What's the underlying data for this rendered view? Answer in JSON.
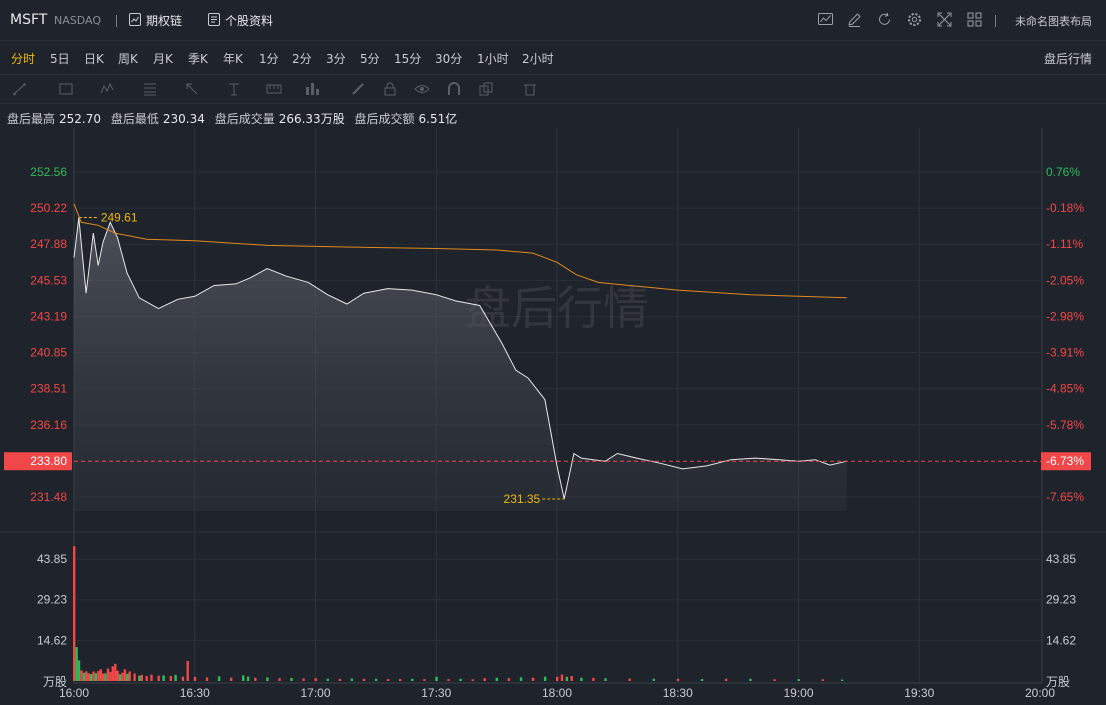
{
  "header": {
    "symbol": "MSFT",
    "exchange": "NASDAQ",
    "options_chain": "期权链",
    "stock_profile": "个股资料",
    "layout_name": "未命名图表布局"
  },
  "toolbar_icons": [
    "indicator-icon",
    "edit-icon",
    "refresh-icon",
    "settings-icon",
    "fullscreen-icon",
    "grid-layout-icon"
  ],
  "periods": [
    "分时",
    "5日",
    "日K",
    "周K",
    "月K",
    "季K",
    "年K",
    "1分",
    "2分",
    "3分",
    "5分",
    "15分",
    "30分",
    "1小时",
    "2小时"
  ],
  "active_period": "分时",
  "after_hours_select": "盘后行情",
  "stats": {
    "high_label": "盘后最高",
    "high": "252.70",
    "low_label": "盘后最低",
    "low": "230.34",
    "volume_label": "盘后成交量",
    "volume": "266.33万股",
    "amount_label": "盘后成交额",
    "amount": "6.51亿"
  },
  "watermark": "盘后行情",
  "colors": {
    "up": "#2ebd59",
    "down": "#f04848",
    "price_line": "#e8e8e8",
    "avg_line": "#e08a1e",
    "accent": "#f0b90b"
  },
  "chart_data": {
    "type": "line",
    "price_axis": [
      "252.56",
      "250.22",
      "247.88",
      "245.53",
      "243.19",
      "240.85",
      "238.51",
      "236.16",
      "233.80",
      "231.48"
    ],
    "pct_axis": [
      "0.76%",
      "-0.18%",
      "-1.11%",
      "-2.05%",
      "-2.98%",
      "-3.91%",
      "-4.85%",
      "-5.78%",
      "-6.73%",
      "-7.65%"
    ],
    "current_price": "233.80",
    "current_pct": "-6.73%",
    "time_axis": [
      "16:00",
      "16:30",
      "17:00",
      "17:30",
      "18:00",
      "18:30",
      "19:00",
      "19:30",
      "20:00"
    ],
    "high_marker": "249.61",
    "low_marker": "231.35",
    "volume_axis": [
      "43.85",
      "29.23",
      "14.62"
    ],
    "volume_unit": "万股",
    "price_series": [
      [
        16.0,
        247.0
      ],
      [
        16.02,
        249.6
      ],
      [
        16.05,
        244.7
      ],
      [
        16.08,
        248.6
      ],
      [
        16.1,
        246.5
      ],
      [
        16.12,
        248.0
      ],
      [
        16.15,
        249.3
      ],
      [
        16.18,
        248.3
      ],
      [
        16.22,
        246.0
      ],
      [
        16.27,
        244.4
      ],
      [
        16.35,
        243.7
      ],
      [
        16.43,
        244.3
      ],
      [
        16.5,
        244.5
      ],
      [
        16.58,
        245.2
      ],
      [
        16.67,
        245.3
      ],
      [
        16.73,
        245.7
      ],
      [
        16.8,
        246.3
      ],
      [
        16.88,
        245.8
      ],
      [
        16.97,
        245.4
      ],
      [
        17.05,
        244.6
      ],
      [
        17.13,
        244.0
      ],
      [
        17.2,
        244.7
      ],
      [
        17.3,
        245.0
      ],
      [
        17.4,
        244.9
      ],
      [
        17.5,
        244.6
      ],
      [
        17.58,
        244.2
      ],
      [
        17.68,
        243.9
      ],
      [
        17.77,
        241.5
      ],
      [
        17.83,
        239.7
      ],
      [
        17.88,
        239.2
      ],
      [
        17.95,
        237.8
      ],
      [
        18.0,
        233.5
      ],
      [
        18.03,
        231.35
      ],
      [
        18.07,
        234.3
      ],
      [
        18.1,
        234.0
      ],
      [
        18.15,
        233.9
      ],
      [
        18.2,
        233.8
      ],
      [
        18.25,
        234.3
      ],
      [
        18.33,
        234.0
      ],
      [
        18.42,
        233.7
      ],
      [
        18.52,
        233.3
      ],
      [
        18.62,
        233.5
      ],
      [
        18.72,
        233.9
      ],
      [
        18.82,
        234.0
      ],
      [
        18.92,
        233.9
      ],
      [
        19.0,
        233.8
      ],
      [
        19.07,
        233.9
      ],
      [
        19.13,
        233.55
      ],
      [
        19.2,
        233.8
      ]
    ],
    "avg_series": [
      [
        16.0,
        250.5
      ],
      [
        16.03,
        249.3
      ],
      [
        16.1,
        249.1
      ],
      [
        16.17,
        248.6
      ],
      [
        16.3,
        248.2
      ],
      [
        16.5,
        248.1
      ],
      [
        16.8,
        247.8
      ],
      [
        17.1,
        247.7
      ],
      [
        17.5,
        247.6
      ],
      [
        17.75,
        247.5
      ],
      [
        17.9,
        247.3
      ],
      [
        18.0,
        246.7
      ],
      [
        18.08,
        245.9
      ],
      [
        18.17,
        245.4
      ],
      [
        18.3,
        245.2
      ],
      [
        18.5,
        244.9
      ],
      [
        18.8,
        244.6
      ],
      [
        19.1,
        244.45
      ],
      [
        19.2,
        244.4
      ]
    ],
    "volume_series": [
      [
        16.0,
        48.5,
        "d"
      ],
      [
        16.01,
        12.2,
        "u"
      ],
      [
        16.02,
        7.4,
        "u"
      ],
      [
        16.03,
        3.8,
        "d"
      ],
      [
        16.04,
        3.0,
        "u"
      ],
      [
        16.05,
        3.5,
        "d"
      ],
      [
        16.06,
        2.8,
        "d"
      ],
      [
        16.07,
        2.5,
        "u"
      ],
      [
        16.08,
        3.4,
        "d"
      ],
      [
        16.09,
        2.8,
        "u"
      ],
      [
        16.1,
        3.6,
        "d"
      ],
      [
        16.11,
        4.2,
        "d"
      ],
      [
        16.12,
        2.7,
        "d"
      ],
      [
        16.13,
        2.8,
        "u"
      ],
      [
        16.14,
        4.5,
        "d"
      ],
      [
        16.15,
        3.3,
        "d"
      ],
      [
        16.16,
        5.3,
        "d"
      ],
      [
        16.17,
        6.2,
        "d"
      ],
      [
        16.18,
        3.7,
        "d"
      ],
      [
        16.19,
        2.4,
        "u"
      ],
      [
        16.2,
        3.0,
        "d"
      ],
      [
        16.21,
        4.2,
        "d"
      ],
      [
        16.22,
        2.6,
        "u"
      ],
      [
        16.23,
        3.4,
        "d"
      ],
      [
        16.25,
        2.7,
        "d"
      ],
      [
        16.27,
        1.9,
        "u"
      ],
      [
        16.28,
        2.2,
        "d"
      ],
      [
        16.3,
        1.8,
        "d"
      ],
      [
        16.32,
        2.3,
        "d"
      ],
      [
        16.35,
        1.9,
        "d"
      ],
      [
        16.37,
        2.0,
        "u"
      ],
      [
        16.4,
        1.8,
        "d"
      ],
      [
        16.42,
        2.2,
        "u"
      ],
      [
        16.45,
        1.6,
        "d"
      ],
      [
        16.47,
        7.2,
        "d"
      ],
      [
        16.5,
        1.5,
        "d"
      ],
      [
        16.55,
        1.3,
        "d"
      ],
      [
        16.6,
        1.7,
        "u"
      ],
      [
        16.65,
        1.2,
        "d"
      ],
      [
        16.7,
        2.0,
        "u"
      ],
      [
        16.72,
        1.6,
        "u"
      ],
      [
        16.75,
        1.2,
        "d"
      ],
      [
        16.8,
        1.3,
        "u"
      ],
      [
        16.85,
        1.0,
        "d"
      ],
      [
        16.9,
        1.1,
        "u"
      ],
      [
        16.95,
        0.9,
        "d"
      ],
      [
        17.0,
        1.0,
        "d"
      ],
      [
        17.05,
        0.8,
        "u"
      ],
      [
        17.1,
        0.8,
        "d"
      ],
      [
        17.15,
        0.9,
        "u"
      ],
      [
        17.2,
        0.8,
        "d"
      ],
      [
        17.25,
        0.8,
        "u"
      ],
      [
        17.3,
        0.7,
        "d"
      ],
      [
        17.35,
        0.7,
        "d"
      ],
      [
        17.4,
        0.8,
        "u"
      ],
      [
        17.45,
        0.7,
        "d"
      ],
      [
        17.5,
        1.5,
        "u"
      ],
      [
        17.55,
        0.7,
        "d"
      ],
      [
        17.6,
        0.8,
        "u"
      ],
      [
        17.65,
        0.6,
        "d"
      ],
      [
        17.7,
        1.0,
        "d"
      ],
      [
        17.75,
        1.2,
        "u"
      ],
      [
        17.8,
        1.0,
        "d"
      ],
      [
        17.85,
        1.3,
        "u"
      ],
      [
        17.9,
        1.2,
        "d"
      ],
      [
        17.95,
        1.6,
        "u"
      ],
      [
        18.0,
        1.5,
        "d"
      ],
      [
        18.02,
        2.3,
        "d"
      ],
      [
        18.04,
        1.5,
        "u"
      ],
      [
        18.06,
        1.8,
        "d"
      ],
      [
        18.1,
        1.2,
        "u"
      ],
      [
        18.15,
        1.1,
        "d"
      ],
      [
        18.2,
        1.0,
        "u"
      ],
      [
        18.3,
        0.9,
        "d"
      ],
      [
        18.4,
        0.8,
        "u"
      ],
      [
        18.5,
        0.8,
        "d"
      ],
      [
        18.6,
        0.7,
        "u"
      ],
      [
        18.7,
        0.8,
        "d"
      ],
      [
        18.8,
        0.8,
        "u"
      ],
      [
        18.9,
        0.6,
        "d"
      ],
      [
        19.0,
        0.7,
        "u"
      ],
      [
        19.1,
        0.6,
        "d"
      ],
      [
        19.18,
        0.5,
        "u"
      ]
    ]
  }
}
